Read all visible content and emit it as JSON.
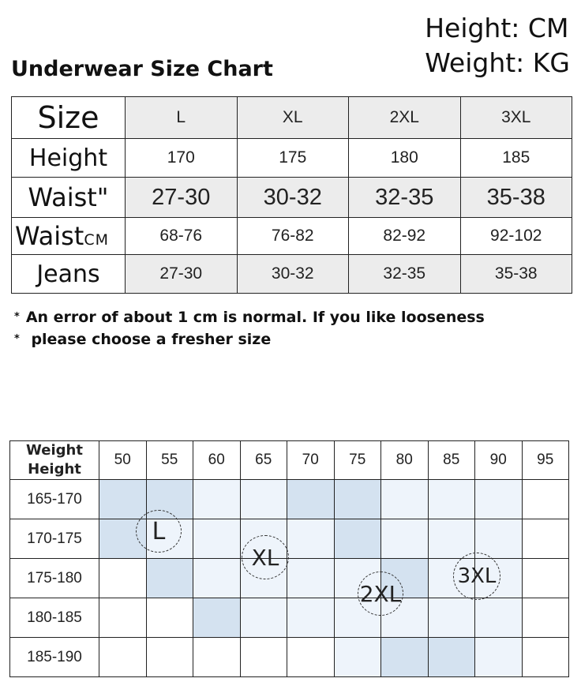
{
  "units": {
    "height": "Height: CM",
    "weight": "Weight: KG"
  },
  "title": "Underwear Size Chart",
  "size_table": {
    "size_label": "Size",
    "sizes": [
      "L",
      "XL",
      "2XL",
      "3XL"
    ],
    "rows": [
      {
        "label": "Height",
        "values": [
          "170",
          "175",
          "180",
          "185"
        ]
      },
      {
        "label": "Waist\"",
        "values": [
          "27-30",
          "30-32",
          "32-35",
          "35-38"
        ]
      },
      {
        "label": "Waist",
        "unit": "CM",
        "values": [
          "68-76",
          "76-82",
          "82-92",
          "92-102"
        ]
      },
      {
        "label": "Jeans",
        "values": [
          "27-30",
          "30-32",
          "32-35",
          "35-38"
        ]
      }
    ]
  },
  "notes": {
    "star": "*",
    "line1": "An error of about 1 cm is normal. If you like looseness",
    "line2": "please choose a fresher size"
  },
  "weight_table": {
    "corner_weight": "Weight",
    "corner_height": "Height",
    "weights": [
      "50",
      "55",
      "60",
      "65",
      "70",
      "75",
      "80",
      "85",
      "90",
      "95"
    ],
    "heights": [
      "165-170",
      "170-175",
      "175-180",
      "180-185",
      "185-190"
    ],
    "shading": [
      [
        2,
        2,
        1,
        1,
        2,
        2,
        1,
        1,
        1,
        0
      ],
      [
        2,
        1,
        1,
        1,
        1,
        2,
        1,
        1,
        1,
        0
      ],
      [
        0,
        2,
        1,
        1,
        1,
        1,
        2,
        1,
        1,
        0
      ],
      [
        0,
        0,
        2,
        1,
        1,
        1,
        1,
        1,
        1,
        0
      ],
      [
        0,
        0,
        0,
        0,
        0,
        1,
        2,
        2,
        1,
        0
      ]
    ],
    "shade_colors": [
      "#ffffff",
      "#eef4fb",
      "#d4e2f0"
    ],
    "badges": [
      "L",
      "XL",
      "2XL",
      "3XL"
    ]
  }
}
